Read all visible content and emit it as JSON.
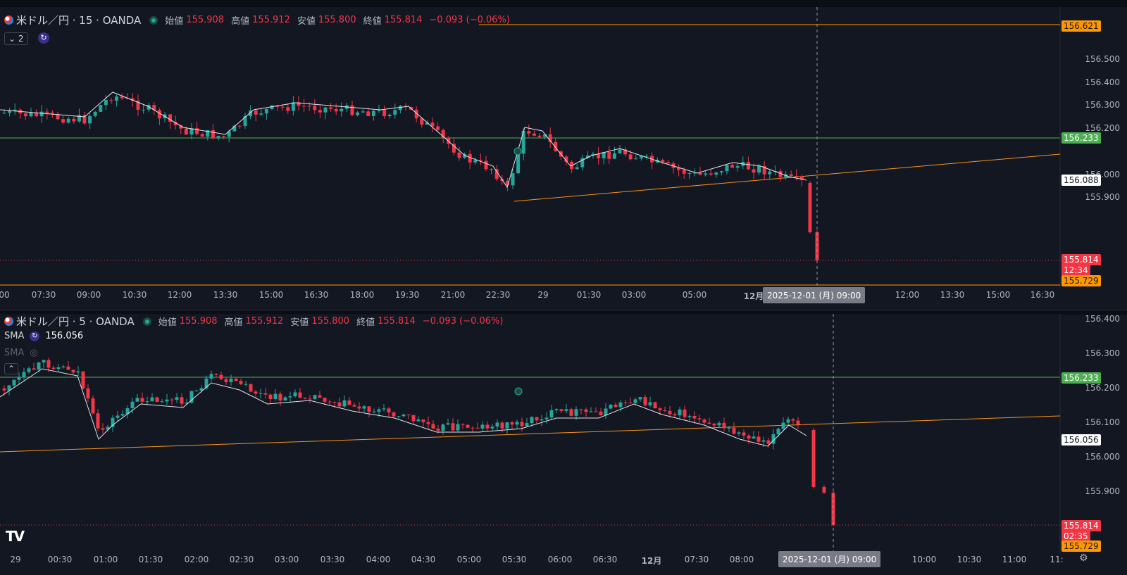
{
  "pane1": {
    "symbol": "米ドル／円 · 15 · OANDA",
    "ohlc": [
      {
        "label": "始値",
        "value": "155.908"
      },
      {
        "label": "高値",
        "value": "155.912"
      },
      {
        "label": "安値",
        "value": "155.800"
      },
      {
        "label": "終値",
        "value": "155.814"
      }
    ],
    "change": "−0.093 (−0.06%)",
    "collapse_chip": "2",
    "price_ticks": [
      "156.500",
      "156.400",
      "156.300",
      "156.200",
      "156.000",
      "155.900"
    ],
    "price_labels": {
      "top": "156.621",
      "green": "156.233",
      "crosshair": "156.088",
      "last": "155.814",
      "countdown": "12:34",
      "bottom": "155.729"
    },
    "time_ticks": [
      "00",
      "07:30",
      "09:00",
      "10:30",
      "12:00",
      "13:30",
      "15:00",
      "16:30",
      "18:00",
      "19:30",
      "21:00",
      "22:30",
      "29",
      "01:30",
      "03:00",
      "05:00",
      "12月",
      "12:00",
      "13:30",
      "15:00",
      "16:30"
    ],
    "crosshair_time": "2025-12-01 (月)   09:00"
  },
  "pane2": {
    "symbol": "米ドル／円 · 5 · OANDA",
    "ohlc": [
      {
        "label": "始値",
        "value": "155.908"
      },
      {
        "label": "高値",
        "value": "155.912"
      },
      {
        "label": "安値",
        "value": "155.800"
      },
      {
        "label": "終値",
        "value": "155.814"
      }
    ],
    "change": "−0.093 (−0.06%)",
    "indicators": [
      {
        "name": "SMA",
        "value": "156.056",
        "visible": true
      },
      {
        "name": "SMA",
        "value": "",
        "visible": false
      }
    ],
    "price_ticks": [
      "156.400",
      "156.300",
      "156.200",
      "156.100",
      "156.000",
      "155.900"
    ],
    "price_labels": {
      "green": "156.233",
      "sma": "156.056",
      "last": "155.814",
      "countdown": "02:35",
      "bottom": "155.729"
    },
    "time_ticks": [
      "29",
      "00:30",
      "01:00",
      "01:30",
      "02:00",
      "02:30",
      "03:00",
      "03:30",
      "04:00",
      "04:30",
      "05:00",
      "05:30",
      "06:00",
      "06:30",
      "12月",
      "07:30",
      "08:00",
      "10:00",
      "10:30",
      "11:00",
      "11:"
    ],
    "crosshair_time": "2025-12-01 (月)   09:00"
  },
  "logo": "TV",
  "colors": {
    "background": "#131722",
    "up": "#26a69a",
    "down": "#f23645",
    "ma": "#e0e3eb",
    "trend": "#f7931a",
    "level_green": "#4caf50",
    "level_orange": "#ff9800"
  }
}
